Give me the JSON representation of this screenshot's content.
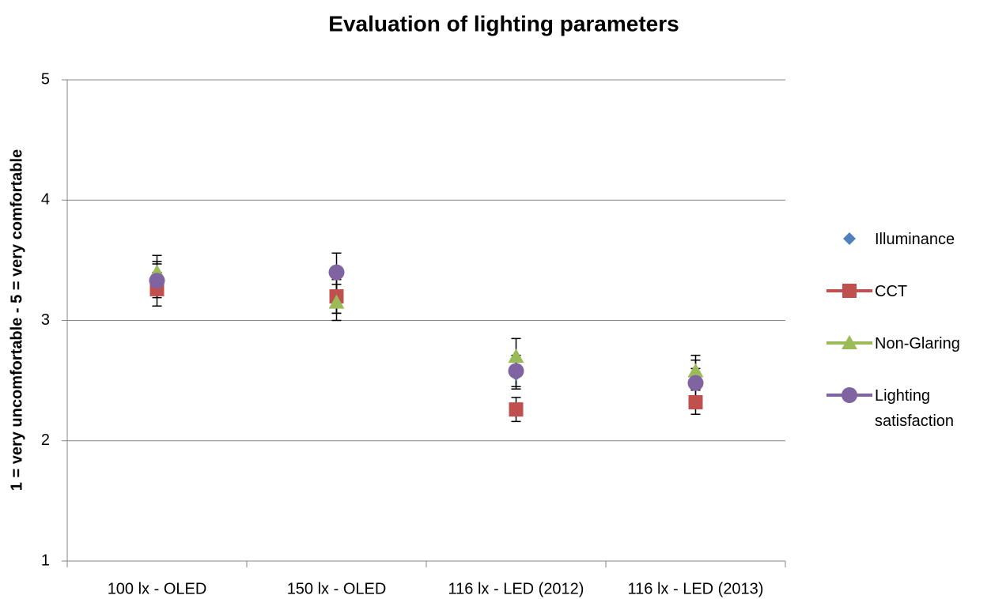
{
  "chart_data": {
    "type": "scatter",
    "title": "Evaluation of lighting parameters",
    "y_label": "1 = very uncomfortable - 5 = very comfortable",
    "categories": [
      "100 lx - OLED",
      "150 lx - OLED",
      "116 lx - LED (2012)",
      "116 lx - LED (2013)"
    ],
    "ylim": [
      1,
      5
    ],
    "yticks": [
      1,
      2,
      3,
      4,
      5
    ],
    "grid": true,
    "series": [
      {
        "name": "Illuminance",
        "color": "#4f81bd",
        "marker": "diamond",
        "values": [
          3.35,
          3.2,
          2.55,
          2.55
        ],
        "errors": [
          0.14,
          0.14,
          0.12,
          0.12
        ]
      },
      {
        "name": "CCT",
        "color": "#c0504d",
        "marker": "square",
        "values": [
          3.26,
          3.2,
          2.26,
          2.32
        ],
        "errors": [
          0.14,
          0.14,
          0.1,
          0.1
        ]
      },
      {
        "name": "Non-Glaring",
        "color": "#9bbb59",
        "marker": "triangle",
        "values": [
          3.4,
          3.15,
          2.7,
          2.58
        ],
        "errors": [
          0.14,
          0.15,
          0.15,
          0.13
        ]
      },
      {
        "name": "Lighting satisfaction",
        "color": "#8064a2",
        "marker": "circle",
        "values": [
          3.33,
          3.4,
          2.58,
          2.48
        ],
        "errors": [
          0.14,
          0.16,
          0.13,
          0.12
        ]
      }
    ]
  }
}
